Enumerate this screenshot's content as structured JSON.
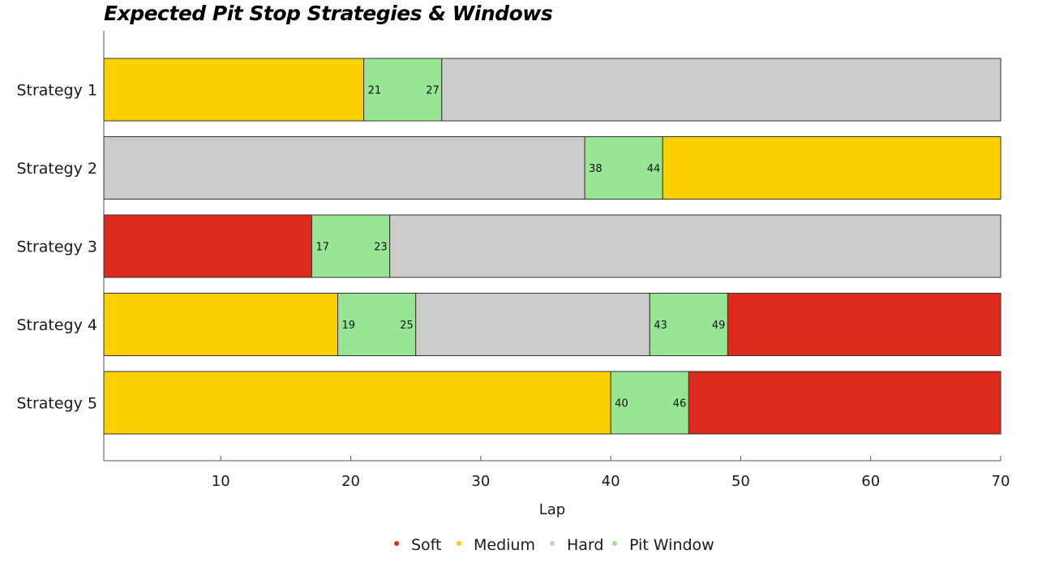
{
  "chart_data": {
    "type": "bar",
    "title": "Expected Pit Stop Strategies & Windows",
    "xlabel": "Lap",
    "ylabel": "",
    "xlim": [
      1,
      70
    ],
    "xticks": [
      10,
      20,
      30,
      40,
      50,
      60,
      70
    ],
    "grid": false,
    "legend_position": "bottom",
    "compound_colors": {
      "Soft": "#dc2a1c",
      "Medium": "#fdd000",
      "Hard": "#cccccc",
      "Pit Window": "#98e596"
    },
    "legend": [
      "Soft",
      "Medium",
      "Hard",
      "Pit Window"
    ],
    "strategies": [
      {
        "name": "Strategy 1",
        "stints": [
          {
            "compound": "Medium",
            "start": 1,
            "end": 21
          },
          {
            "compound": "Pit Window",
            "start": 21,
            "end": 27
          },
          {
            "compound": "Hard",
            "start": 27,
            "end": 70
          }
        ],
        "windows": [
          {
            "start": 21,
            "end": 27
          }
        ]
      },
      {
        "name": "Strategy 2",
        "stints": [
          {
            "compound": "Hard",
            "start": 1,
            "end": 38
          },
          {
            "compound": "Pit Window",
            "start": 38,
            "end": 44
          },
          {
            "compound": "Medium",
            "start": 44,
            "end": 70
          }
        ],
        "windows": [
          {
            "start": 38,
            "end": 44
          }
        ]
      },
      {
        "name": "Strategy 3",
        "stints": [
          {
            "compound": "Soft",
            "start": 1,
            "end": 17
          },
          {
            "compound": "Pit Window",
            "start": 17,
            "end": 23
          },
          {
            "compound": "Hard",
            "start": 23,
            "end": 70
          }
        ],
        "windows": [
          {
            "start": 17,
            "end": 23
          }
        ]
      },
      {
        "name": "Strategy 4",
        "stints": [
          {
            "compound": "Medium",
            "start": 1,
            "end": 19
          },
          {
            "compound": "Pit Window",
            "start": 19,
            "end": 25
          },
          {
            "compound": "Hard",
            "start": 25,
            "end": 43
          },
          {
            "compound": "Pit Window",
            "start": 43,
            "end": 49
          },
          {
            "compound": "Soft",
            "start": 49,
            "end": 70
          }
        ],
        "windows": [
          {
            "start": 19,
            "end": 25
          },
          {
            "start": 43,
            "end": 49
          }
        ]
      },
      {
        "name": "Strategy 5",
        "stints": [
          {
            "compound": "Medium",
            "start": 1,
            "end": 40
          },
          {
            "compound": "Pit Window",
            "start": 40,
            "end": 46
          },
          {
            "compound": "Soft",
            "start": 46,
            "end": 70
          }
        ],
        "windows": [
          {
            "start": 40,
            "end": 46
          }
        ]
      }
    ]
  }
}
